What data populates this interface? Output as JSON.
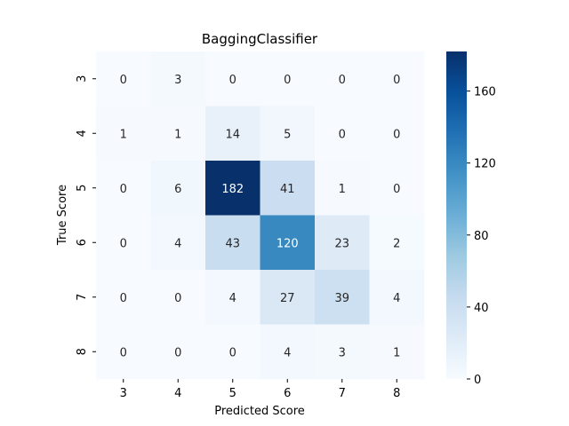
{
  "chart_data": {
    "type": "heatmap",
    "title": "BaggingClassifier",
    "xlabel": "Predicted Score",
    "ylabel": "True Score",
    "x_categories": [
      "3",
      "4",
      "5",
      "6",
      "7",
      "8"
    ],
    "y_categories": [
      "3",
      "4",
      "5",
      "6",
      "7",
      "8"
    ],
    "values": [
      [
        0,
        3,
        0,
        0,
        0,
        0
      ],
      [
        1,
        1,
        14,
        5,
        0,
        0
      ],
      [
        0,
        6,
        182,
        41,
        1,
        0
      ],
      [
        0,
        4,
        43,
        120,
        23,
        2
      ],
      [
        0,
        0,
        4,
        27,
        39,
        4
      ],
      [
        0,
        0,
        0,
        4,
        3,
        1
      ]
    ],
    "colormap": "Blues",
    "colorbar": {
      "min": 0,
      "max": 182,
      "ticks": [
        0,
        40,
        80,
        120,
        160
      ]
    },
    "grid": false,
    "legend": "colorbar-right"
  }
}
